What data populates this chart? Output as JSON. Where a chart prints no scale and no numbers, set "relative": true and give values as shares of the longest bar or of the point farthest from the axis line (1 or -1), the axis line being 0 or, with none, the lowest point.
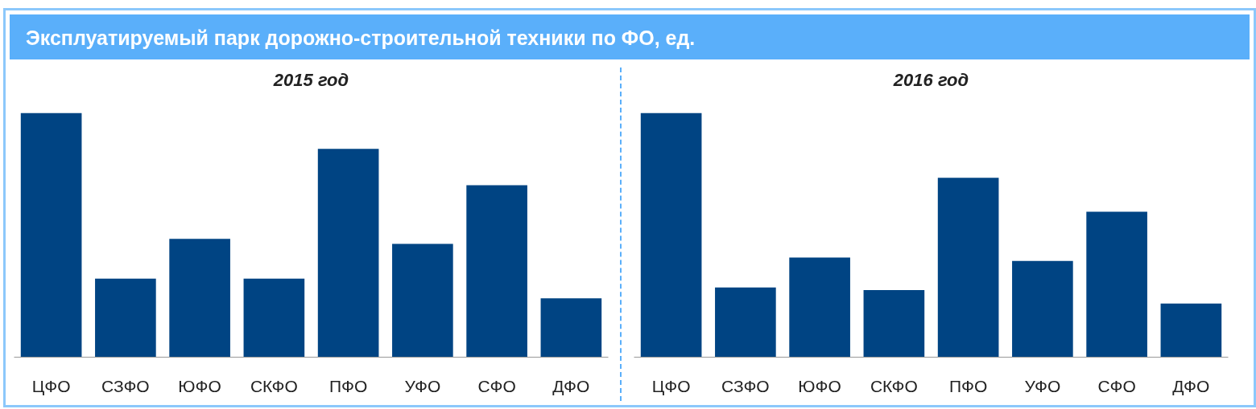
{
  "chart_data": [
    {
      "type": "bar",
      "title": "Эксплуатируемый парк дорожно-строительной техники по ФО, ед.",
      "subtitle": "2015 год",
      "relative": true,
      "categories": [
        "ЦФО",
        "СЗФО",
        "ЮФО",
        "СКФО",
        "ПФО",
        "УФО",
        "СФО",
        "ДФО"
      ],
      "color": "#004483",
      "values": [
        1,
        0.322,
        0.485,
        0.322,
        0.854,
        0.464,
        0.705,
        0.241
      ],
      "grid": false
    },
    {
      "type": "bar",
      "subtitle": "2016 год",
      "relative": true,
      "categories": [
        "ЦФО",
        "СЗФО",
        "ЮФО",
        "СКФО",
        "ПФО",
        "УФО",
        "СФО",
        "ДФО"
      ],
      "color": "#004483",
      "values": [
        1,
        0.286,
        0.408,
        0.275,
        0.735,
        0.394,
        0.596,
        0.22
      ],
      "grid": false
    }
  ]
}
